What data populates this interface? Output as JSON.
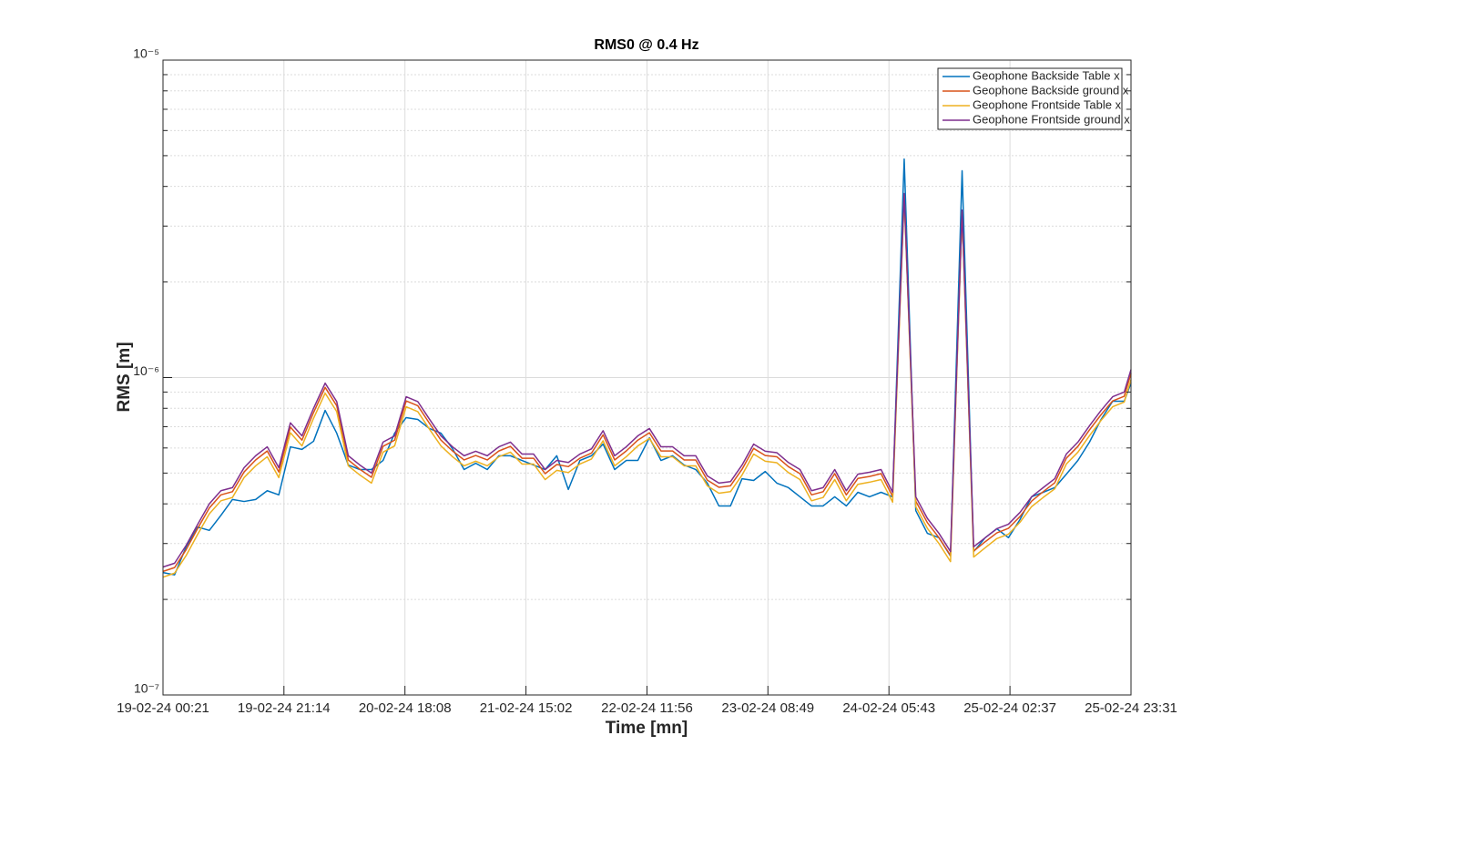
{
  "chart_data": {
    "type": "line",
    "title": "RMS0 @ 0.4 Hz",
    "x_label": "Time [mn]",
    "y_label": "RMS [m]",
    "x": [
      "19-02-24 00:21",
      "19-02-24 02:21",
      "19-02-24 04:21",
      "19-02-24 06:21",
      "19-02-24 08:21",
      "19-02-24 10:21",
      "19-02-24 12:21",
      "19-02-24 14:21",
      "19-02-24 16:21",
      "19-02-24 18:21",
      "19-02-24 20:21",
      "19-02-24 22:21",
      "20-02-24 00:21",
      "20-02-24 02:21",
      "20-02-24 04:21",
      "20-02-24 06:21",
      "20-02-24 08:21",
      "20-02-24 10:21",
      "20-02-24 12:21",
      "20-02-24 14:21",
      "20-02-24 16:21",
      "20-02-24 18:21",
      "20-02-24 20:21",
      "20-02-24 22:21",
      "21-02-24 00:21",
      "21-02-24 02:21",
      "21-02-24 04:21",
      "21-02-24 06:21",
      "21-02-24 08:21",
      "21-02-24 10:21",
      "21-02-24 12:21",
      "21-02-24 14:21",
      "21-02-24 16:21",
      "21-02-24 18:21",
      "21-02-24 20:21",
      "21-02-24 22:21",
      "22-02-24 00:21",
      "22-02-24 02:21",
      "22-02-24 04:21",
      "22-02-24 06:21",
      "22-02-24 08:21",
      "22-02-24 10:21",
      "22-02-24 12:21",
      "22-02-24 14:21",
      "22-02-24 16:21",
      "22-02-24 18:21",
      "22-02-24 20:21",
      "22-02-24 22:21",
      "23-02-24 00:21",
      "23-02-24 02:21",
      "23-02-24 04:21",
      "23-02-24 06:21",
      "23-02-24 08:21",
      "23-02-24 10:21",
      "23-02-24 12:21",
      "23-02-24 14:21",
      "23-02-24 16:21",
      "23-02-24 18:21",
      "23-02-24 20:21",
      "23-02-24 22:21",
      "24-02-24 00:21",
      "24-02-24 02:21",
      "24-02-24 04:21",
      "24-02-24 06:21",
      "24-02-24 08:21",
      "24-02-24 10:21",
      "24-02-24 12:21",
      "24-02-24 14:21",
      "24-02-24 16:21",
      "24-02-24 18:21",
      "24-02-24 20:21",
      "24-02-24 22:21",
      "25-02-24 00:21",
      "25-02-24 02:21",
      "25-02-24 04:21",
      "25-02-24 06:21",
      "25-02-24 08:21",
      "25-02-24 10:21",
      "25-02-24 12:21",
      "25-02-24 14:21",
      "25-02-24 16:21",
      "25-02-24 18:21",
      "25-02-24 20:21",
      "25-02-24 22:21",
      "25-02-24 23:31"
    ],
    "series": [
      {
        "name": "Geophone Backside Table x",
        "color": "#0072BD",
        "values": [
          2.43e-07,
          2.39e-07,
          2.93e-07,
          3.38e-07,
          3.3e-07,
          3.68e-07,
          4.13e-07,
          4.07e-07,
          4.13e-07,
          4.4e-07,
          4.27e-07,
          6.05e-07,
          5.94e-07,
          6.3e-07,
          7.88e-07,
          6.68e-07,
          5.3e-07,
          5.13e-07,
          5.13e-07,
          5.48e-07,
          6.68e-07,
          7.48e-07,
          7.38e-07,
          6.91e-07,
          6.68e-07,
          5.97e-07,
          5.13e-07,
          5.37e-07,
          5.13e-07,
          5.67e-07,
          5.67e-07,
          5.48e-07,
          5.3e-07,
          5.13e-07,
          5.67e-07,
          4.44e-07,
          5.48e-07,
          5.67e-07,
          6.17e-07,
          5.13e-07,
          5.48e-07,
          5.48e-07,
          6.46e-07,
          5.48e-07,
          5.67e-07,
          5.3e-07,
          5.13e-07,
          4.65e-07,
          3.94e-07,
          3.94e-07,
          4.8e-07,
          4.74e-07,
          5.06e-07,
          4.65e-07,
          4.5e-07,
          4.21e-07,
          3.94e-07,
          3.94e-07,
          4.21e-07,
          3.94e-07,
          4.35e-07,
          4.21e-07,
          4.35e-07,
          4.21e-07,
          4.88e-06,
          3.81e-07,
          3.23e-07,
          3.13e-07,
          2.74e-07,
          4.48e-06,
          2.83e-07,
          3.13e-07,
          3.34e-07,
          3.13e-07,
          3.57e-07,
          4.21e-07,
          4.35e-07,
          4.5e-07,
          4.96e-07,
          5.48e-07,
          6.26e-07,
          7.38e-07,
          8.42e-07,
          8.42e-07,
          9.61e-07
        ]
      },
      {
        "name": "Geophone Backside ground x",
        "color": "#D95319",
        "values": [
          2.45e-07,
          2.52e-07,
          2.87e-07,
          3.35e-07,
          3.88e-07,
          4.27e-07,
          4.37e-07,
          5.04e-07,
          5.5e-07,
          5.87e-07,
          5.04e-07,
          6.98e-07,
          6.35e-07,
          7.76e-07,
          9.31e-07,
          8.15e-07,
          5.5e-07,
          5.14e-07,
          4.85e-07,
          6.07e-07,
          6.35e-07,
          8.44e-07,
          8.15e-07,
          7.18e-07,
          6.35e-07,
          5.87e-07,
          5.5e-07,
          5.68e-07,
          5.5e-07,
          5.87e-07,
          6.07e-07,
          5.57e-07,
          5.57e-07,
          4.98e-07,
          5.32e-07,
          5.24e-07,
          5.57e-07,
          5.78e-07,
          6.6e-07,
          5.5e-07,
          5.87e-07,
          6.35e-07,
          6.7e-07,
          5.87e-07,
          5.87e-07,
          5.5e-07,
          5.5e-07,
          4.75e-07,
          4.51e-07,
          4.56e-07,
          5.14e-07,
          5.98e-07,
          5.68e-07,
          5.63e-07,
          5.24e-07,
          4.98e-07,
          4.27e-07,
          4.37e-07,
          4.98e-07,
          4.27e-07,
          4.81e-07,
          4.88e-07,
          4.98e-07,
          4.22e-07,
          3.75e-06,
          4.08e-07,
          3.49e-07,
          3.13e-07,
          2.75e-07,
          3.32e-06,
          2.84e-07,
          3.04e-07,
          3.24e-07,
          3.35e-07,
          3.65e-07,
          4.08e-07,
          4.37e-07,
          4.66e-07,
          5.57e-07,
          6.07e-07,
          6.84e-07,
          7.64e-07,
          8.44e-07,
          8.73e-07,
          1.03e-06
        ]
      },
      {
        "name": "Geophone Frontside Table x",
        "color": "#EDB120",
        "values": [
          2.35e-07,
          2.42e-07,
          2.75e-07,
          3.21e-07,
          3.72e-07,
          4.09e-07,
          4.19e-07,
          4.84e-07,
          5.27e-07,
          5.63e-07,
          4.84e-07,
          6.7e-07,
          6.09e-07,
          7.44e-07,
          8.93e-07,
          7.81e-07,
          5.27e-07,
          4.93e-07,
          4.65e-07,
          5.82e-07,
          6.09e-07,
          8.09e-07,
          7.81e-07,
          6.88e-07,
          6.09e-07,
          5.63e-07,
          5.27e-07,
          5.45e-07,
          5.27e-07,
          5.63e-07,
          5.82e-07,
          5.34e-07,
          5.34e-07,
          4.77e-07,
          5.1e-07,
          5.02e-07,
          5.34e-07,
          5.54e-07,
          6.32e-07,
          5.27e-07,
          5.63e-07,
          6.09e-07,
          6.43e-07,
          5.63e-07,
          5.63e-07,
          5.27e-07,
          5.27e-07,
          4.56e-07,
          4.32e-07,
          4.37e-07,
          4.93e-07,
          5.74e-07,
          5.45e-07,
          5.39e-07,
          5.02e-07,
          4.77e-07,
          4.09e-07,
          4.19e-07,
          4.77e-07,
          4.09e-07,
          4.61e-07,
          4.68e-07,
          4.77e-07,
          4.05e-07,
          3.72e-06,
          3.92e-07,
          3.35e-07,
          3e-07,
          2.63e-07,
          3.3e-06,
          2.72e-07,
          2.91e-07,
          3.11e-07,
          3.21e-07,
          3.5e-07,
          3.92e-07,
          4.19e-07,
          4.46e-07,
          5.34e-07,
          5.82e-07,
          6.56e-07,
          7.33e-07,
          8.09e-07,
          8.37e-07,
          9.86e-07
        ]
      },
      {
        "name": "Geophone Frontside ground x",
        "color": "#7E2F8E",
        "values": [
          2.53e-07,
          2.6e-07,
          2.96e-07,
          3.45e-07,
          4e-07,
          4.4e-07,
          4.5e-07,
          5.2e-07,
          5.67e-07,
          6.05e-07,
          5.2e-07,
          7.2e-07,
          6.55e-07,
          8e-07,
          9.6e-07,
          8.4e-07,
          5.67e-07,
          5.3e-07,
          5e-07,
          6.26e-07,
          6.55e-07,
          8.7e-07,
          8.4e-07,
          7.4e-07,
          6.55e-07,
          6.05e-07,
          5.67e-07,
          5.86e-07,
          5.67e-07,
          6.05e-07,
          6.26e-07,
          5.74e-07,
          5.74e-07,
          5.13e-07,
          5.48e-07,
          5.4e-07,
          5.74e-07,
          5.96e-07,
          6.8e-07,
          5.67e-07,
          6.05e-07,
          6.55e-07,
          6.91e-07,
          6.05e-07,
          6.05e-07,
          5.67e-07,
          5.67e-07,
          4.9e-07,
          4.65e-07,
          4.7e-07,
          5.3e-07,
          6.17e-07,
          5.86e-07,
          5.8e-07,
          5.4e-07,
          5.13e-07,
          4.4e-07,
          4.5e-07,
          5.13e-07,
          4.4e-07,
          4.96e-07,
          5.03e-07,
          5.13e-07,
          4.35e-07,
          3.8e-06,
          4.21e-07,
          3.6e-07,
          3.23e-07,
          2.83e-07,
          3.37e-06,
          2.93e-07,
          3.13e-07,
          3.34e-07,
          3.45e-07,
          3.76e-07,
          4.21e-07,
          4.5e-07,
          4.8e-07,
          5.74e-07,
          6.26e-07,
          7.05e-07,
          7.88e-07,
          8.7e-07,
          9e-07,
          1.06e-06
        ]
      }
    ],
    "xlim": [
      "19-02-24 00:21",
      "25-02-24 23:31"
    ],
    "xticks": [
      "19-02-24 00:21",
      "19-02-24 21:14",
      "20-02-24 18:08",
      "21-02-24 15:02",
      "22-02-24 11:56",
      "23-02-24 08:49",
      "24-02-24 05:43",
      "25-02-24 02:37",
      "25-02-24 23:31"
    ],
    "ylim": [
      1e-07,
      1e-05
    ],
    "yticks": [
      {
        "value": 1e-07,
        "label": "10⁻⁷"
      },
      {
        "value": 1e-06,
        "label": "10⁻⁶"
      },
      {
        "value": 1e-05,
        "label": "10⁻⁵"
      }
    ],
    "yscale": "log",
    "grid": true,
    "minor_grid": true,
    "legend": "northeast"
  }
}
